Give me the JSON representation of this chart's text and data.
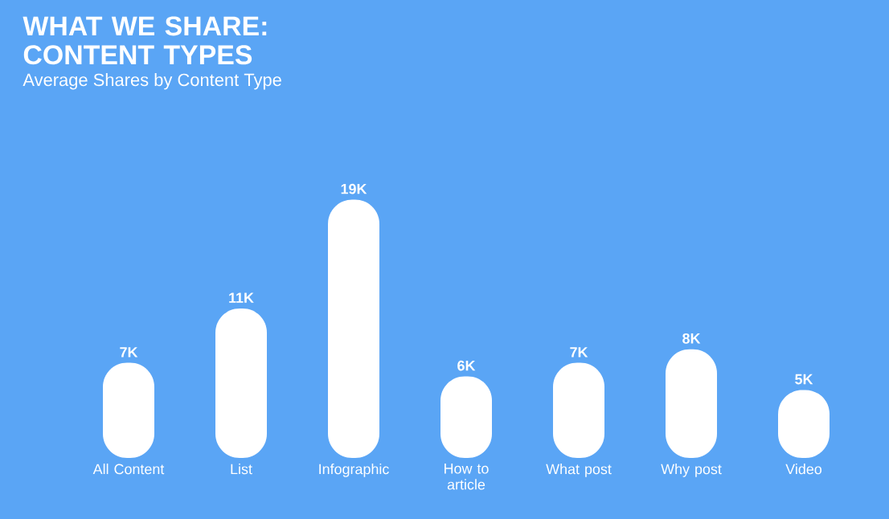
{
  "chart_data": {
    "type": "bar",
    "title": "WHAT WE SHARE: CONTENT TYPES",
    "subtitle": "Average Shares by Content Type",
    "categories": [
      "All Content",
      "List",
      "Infographic",
      "How to article",
      "What post",
      "Why post",
      "Video"
    ],
    "values": [
      7000,
      11000,
      19000,
      6000,
      7000,
      8000,
      5000
    ],
    "value_labels": [
      "7K",
      "11K",
      "19K",
      "6K",
      "7K",
      "8K",
      "5K"
    ],
    "color": "#ffffff"
  }
}
